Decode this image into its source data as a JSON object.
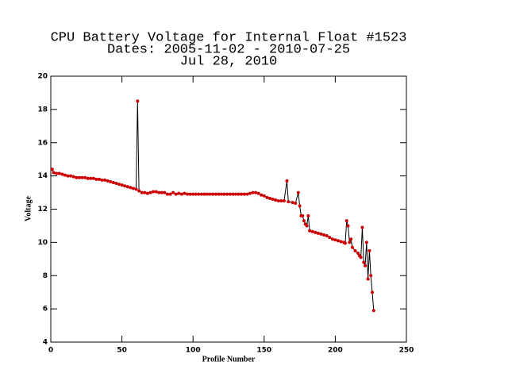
{
  "chart_data": {
    "type": "line",
    "title": "CPU Battery Voltage for Internal Float #1523",
    "subtitle": "Dates:  2005-11-02 -  2010-07-25",
    "date": "Jul 28, 2010",
    "xlabel": "Profile Number",
    "ylabel": "Voltage",
    "xlim": [
      0,
      250
    ],
    "xticks": [
      0,
      50,
      100,
      150,
      200,
      250
    ],
    "ylim": [
      4,
      20
    ],
    "yticks": [
      4,
      6,
      8,
      10,
      12,
      14,
      16,
      18,
      20
    ],
    "line_color": "#000000",
    "marker_color": "#cc0000",
    "x": [
      1,
      2,
      4,
      6,
      8,
      10,
      12,
      14,
      16,
      18,
      20,
      22,
      24,
      26,
      28,
      30,
      32,
      34,
      36,
      38,
      40,
      42,
      44,
      46,
      48,
      50,
      52,
      54,
      56,
      58,
      60,
      61,
      62,
      64,
      66,
      68,
      70,
      72,
      74,
      76,
      78,
      80,
      82,
      84,
      86,
      88,
      90,
      92,
      94,
      96,
      98,
      100,
      102,
      104,
      106,
      108,
      110,
      112,
      114,
      116,
      118,
      120,
      122,
      124,
      126,
      128,
      130,
      132,
      134,
      136,
      138,
      140,
      142,
      144,
      146,
      148,
      150,
      152,
      154,
      156,
      158,
      160,
      162,
      164,
      166,
      167,
      170,
      172,
      174,
      175,
      176,
      177,
      178,
      179,
      180,
      181,
      182,
      184,
      186,
      188,
      190,
      192,
      194,
      196,
      198,
      200,
      202,
      204,
      206,
      207,
      208,
      209,
      210,
      211,
      212,
      214,
      216,
      217,
      218,
      219,
      220,
      221,
      222,
      223,
      224,
      225,
      226,
      227
    ],
    "values": [
      14.4,
      14.2,
      14.15,
      14.15,
      14.1,
      14.05,
      14.0,
      14.0,
      13.95,
      13.9,
      13.9,
      13.9,
      13.9,
      13.85,
      13.85,
      13.85,
      13.8,
      13.8,
      13.75,
      13.75,
      13.7,
      13.65,
      13.6,
      13.55,
      13.5,
      13.45,
      13.4,
      13.35,
      13.3,
      13.25,
      13.2,
      18.5,
      13.1,
      13.0,
      13.0,
      12.95,
      13.0,
      13.05,
      13.05,
      13.0,
      13.0,
      13.0,
      12.9,
      12.9,
      13.0,
      12.9,
      12.95,
      12.9,
      12.95,
      12.9,
      12.9,
      12.9,
      12.9,
      12.9,
      12.9,
      12.9,
      12.9,
      12.9,
      12.9,
      12.9,
      12.9,
      12.9,
      12.9,
      12.9,
      12.9,
      12.9,
      12.9,
      12.9,
      12.9,
      12.9,
      12.9,
      12.95,
      13.0,
      13.0,
      12.95,
      12.85,
      12.8,
      12.7,
      12.65,
      12.6,
      12.55,
      12.5,
      12.5,
      12.5,
      13.7,
      12.45,
      12.4,
      12.35,
      13.0,
      12.2,
      11.6,
      11.6,
      11.3,
      11.1,
      11.0,
      11.6,
      10.7,
      10.65,
      10.6,
      10.55,
      10.5,
      10.45,
      10.4,
      10.3,
      10.2,
      10.15,
      10.1,
      10.05,
      10.0,
      9.95,
      11.3,
      11.0,
      10.0,
      10.2,
      9.7,
      9.5,
      9.35,
      9.2,
      9.1,
      10.9,
      8.8,
      8.6,
      10.0,
      7.8,
      9.5,
      8.0,
      7.0,
      5.9
    ]
  }
}
